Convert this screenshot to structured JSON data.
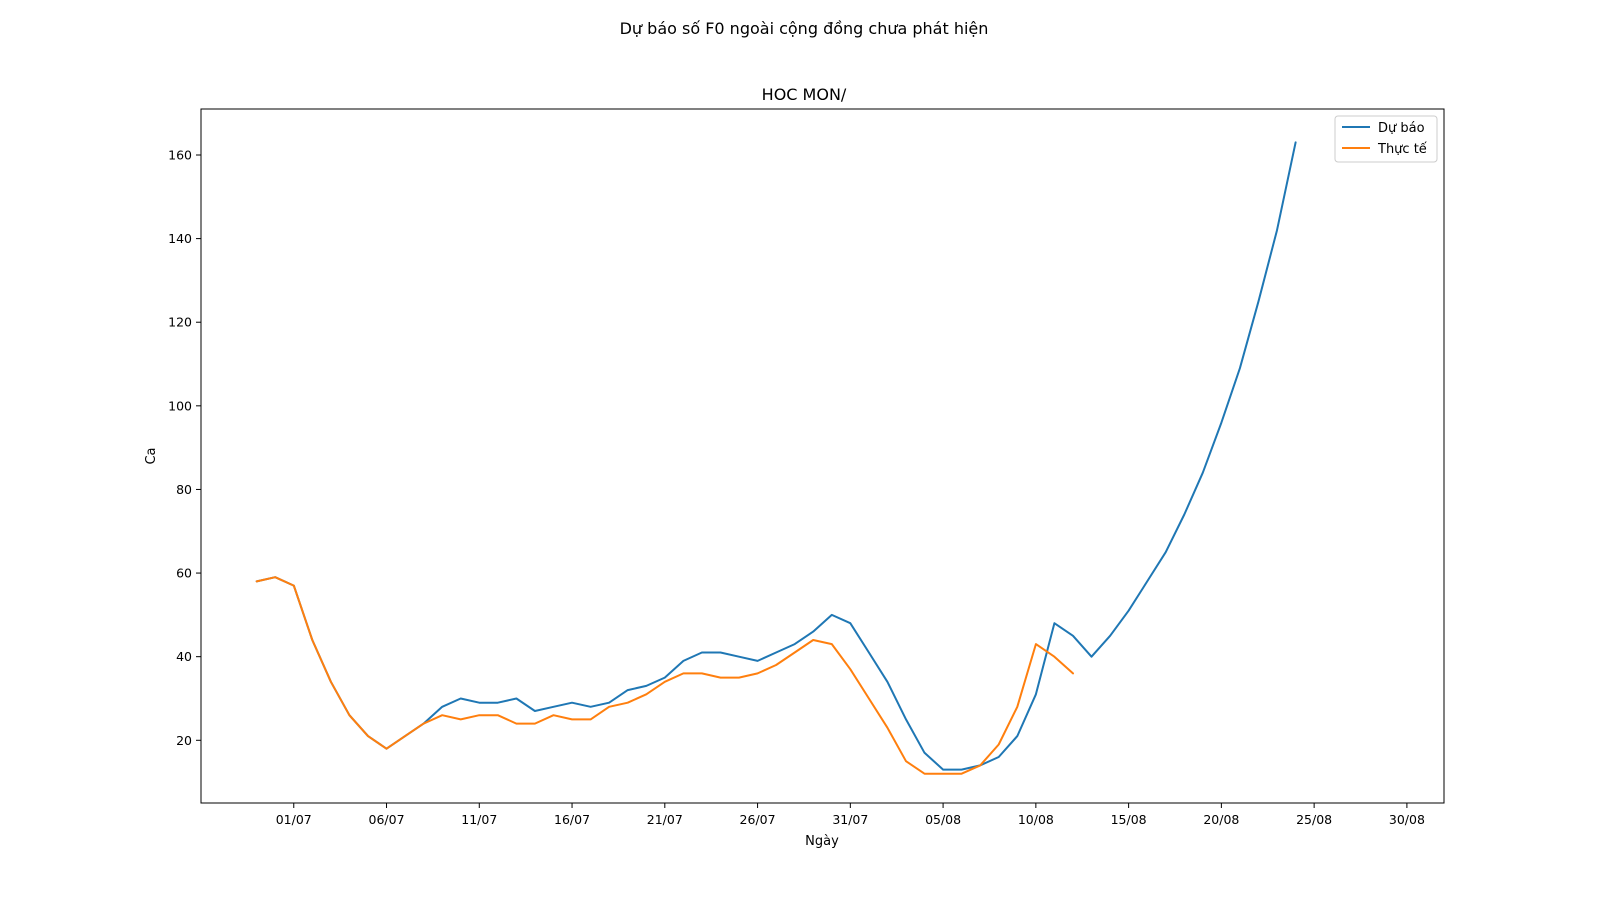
{
  "chart_data": {
    "type": "line",
    "suptitle": "Dự báo số F0 ngoài cộng đồng chưa phát hiện",
    "title": "HOC MON/",
    "xlabel": "Ngày",
    "ylabel": "Ca",
    "x_axis": "date",
    "xlim": [
      "2021-06-26",
      "2021-09-01"
    ],
    "ylim": [
      5,
      171
    ],
    "x_ticks": [
      {
        "date": "2021-07-01",
        "label": "01/07"
      },
      {
        "date": "2021-07-06",
        "label": "06/07"
      },
      {
        "date": "2021-07-11",
        "label": "11/07"
      },
      {
        "date": "2021-07-16",
        "label": "16/07"
      },
      {
        "date": "2021-07-21",
        "label": "21/07"
      },
      {
        "date": "2021-07-26",
        "label": "26/07"
      },
      {
        "date": "2021-07-31",
        "label": "31/07"
      },
      {
        "date": "2021-08-05",
        "label": "05/08"
      },
      {
        "date": "2021-08-10",
        "label": "10/08"
      },
      {
        "date": "2021-08-15",
        "label": "15/08"
      },
      {
        "date": "2021-08-20",
        "label": "20/08"
      },
      {
        "date": "2021-08-25",
        "label": "25/08"
      },
      {
        "date": "2021-08-30",
        "label": "30/08"
      }
    ],
    "y_ticks": [
      20,
      40,
      60,
      80,
      100,
      120,
      140,
      160
    ],
    "grid": false,
    "legend_position": "top-right",
    "series": [
      {
        "name": "Dự báo",
        "color": "#1f77b4",
        "start_date": "2021-06-29",
        "values": [
          58,
          59,
          57,
          44,
          34,
          26,
          21,
          18,
          21,
          24,
          28,
          30,
          29,
          29,
          30,
          27,
          28,
          29,
          28,
          29,
          32,
          33,
          35,
          39,
          41,
          41,
          40,
          39,
          41,
          43,
          46,
          50,
          48,
          41,
          34,
          25,
          17,
          13,
          13,
          14,
          16,
          21,
          31,
          48,
          45,
          40,
          45,
          51,
          58,
          65,
          74,
          84,
          96,
          109,
          125,
          142,
          163
        ]
      },
      {
        "name": "Thực tế",
        "color": "#ff7f0e",
        "start_date": "2021-06-29",
        "values": [
          58,
          59,
          57,
          44,
          34,
          26,
          21,
          18,
          21,
          24,
          26,
          25,
          26,
          26,
          24,
          24,
          26,
          25,
          25,
          28,
          29,
          31,
          34,
          36,
          36,
          35,
          35,
          36,
          38,
          41,
          44,
          43,
          37,
          30,
          23,
          15,
          12,
          12,
          12,
          14,
          19,
          28,
          43,
          40,
          36
        ]
      }
    ]
  }
}
